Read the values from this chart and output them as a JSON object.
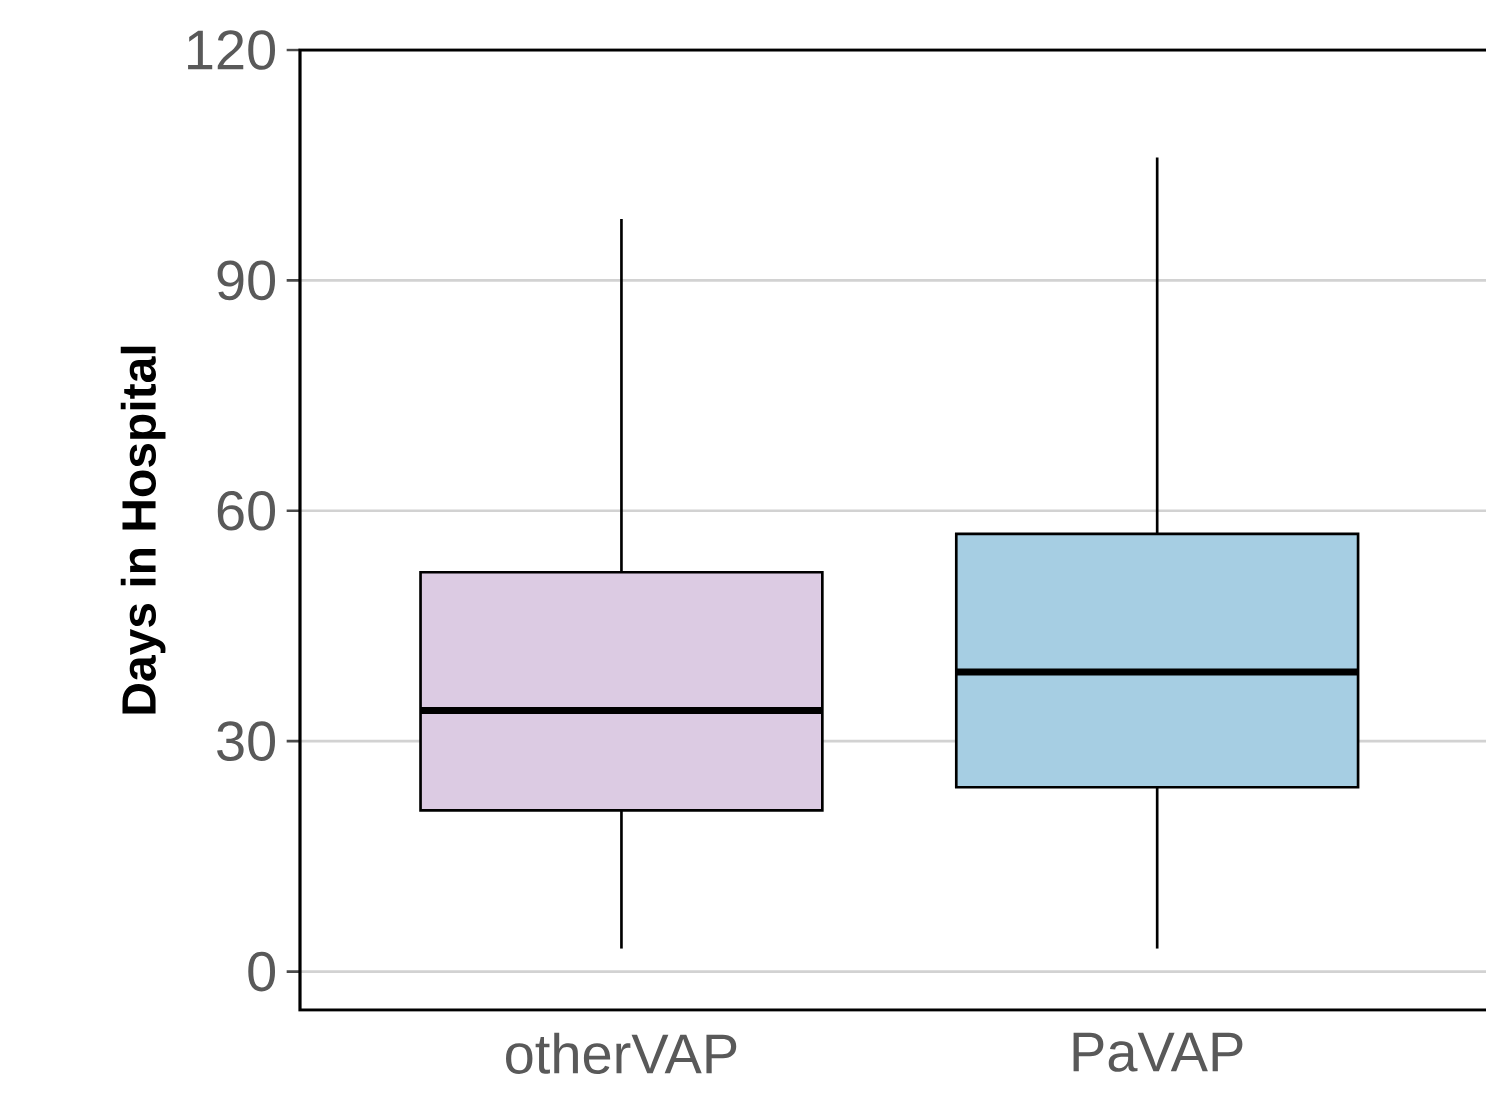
{
  "chart_data": {
    "type": "box",
    "categories": [
      "otherVAP",
      "PaVAP"
    ],
    "boxes": [
      {
        "low": 3,
        "q1": 21,
        "median": 34,
        "q3": 52,
        "high": 98
      },
      {
        "low": 3,
        "q1": 24,
        "median": 39,
        "q3": 57,
        "high": 106
      }
    ],
    "colors": [
      "#dccbe3",
      "#a6cee3"
    ],
    "ylabel": "Days in Hospital",
    "ylim": [
      -5,
      120
    ],
    "yticks": [
      0,
      30,
      60,
      90,
      120
    ],
    "grid": "y"
  }
}
